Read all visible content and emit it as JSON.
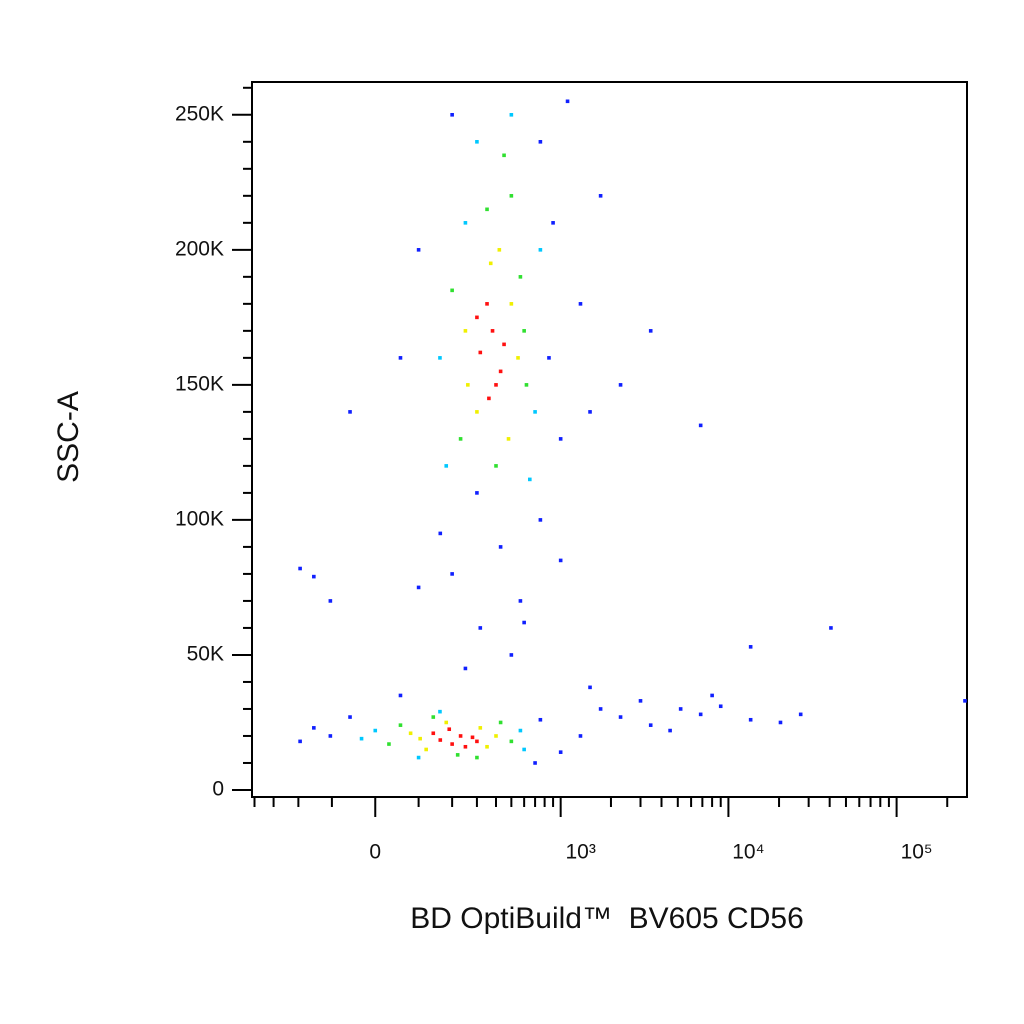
{
  "chart_data": {
    "type": "scatter",
    "x_label": "BD OptiBuild™  BV605 CD56",
    "y_label": "SSC-A",
    "x_scale": "biexponential",
    "xlim": [
      -415,
      262144
    ],
    "ylim": [
      -2600,
      262144
    ],
    "xticks": [
      0,
      {
        "value": 1000,
        "label": "10³"
      },
      {
        "value": 10000,
        "label": "10⁴"
      },
      {
        "value": 100000,
        "label": "10⁵"
      }
    ],
    "xminorticks": [
      -400,
      -300,
      -200,
      -100,
      100,
      200,
      300,
      400,
      500,
      600,
      700,
      800,
      900,
      2000,
      3000,
      4000,
      5000,
      6000,
      7000,
      8000,
      9000,
      20000,
      30000,
      40000,
      50000,
      60000,
      70000,
      80000,
      90000,
      200000
    ],
    "yticks": [
      0,
      {
        "value": 50000,
        "label": "50K"
      },
      {
        "value": 100000,
        "label": "100K"
      },
      {
        "value": 150000,
        "label": "150K"
      },
      {
        "value": 200000,
        "label": "200K"
      },
      {
        "value": 250000,
        "label": "250K"
      }
    ],
    "yminorticks": [
      10000,
      20000,
      30000,
      40000,
      60000,
      70000,
      80000,
      90000,
      110000,
      120000,
      130000,
      140000,
      160000,
      170000,
      180000,
      190000,
      210000,
      220000,
      230000,
      240000,
      260000
    ],
    "series": [
      {
        "color": "#1020ff",
        "x": [
          -104,
          -194,
          -56,
          754,
          1000,
          1315,
          700,
          56,
          -150,
          1735,
          2282,
          3450,
          5200,
          6840,
          9000,
          13560,
          20400,
          26900,
          3000,
          4500,
          8000,
          1500,
          316,
          200,
          428,
          569,
          100,
          754,
          500,
          300,
          161,
          1000,
          -104,
          600,
          250,
          1000,
          1315,
          56,
          -56,
          754,
          200,
          900,
          1735,
          1100,
          100,
          850,
          1500,
          2282,
          3450,
          6840,
          40700,
          255000,
          -194,
          -150,
          13560
        ],
        "values": [
          20000,
          18000,
          27000,
          26000,
          14000,
          20000,
          10000,
          35000,
          23000,
          30000,
          27000,
          24000,
          30000,
          28000,
          31000,
          26000,
          25000,
          28000,
          33000,
          22000,
          35000,
          38000,
          60000,
          80000,
          90000,
          70000,
          75000,
          100000,
          50000,
          110000,
          95000,
          85000,
          70000,
          62000,
          45000,
          130000,
          180000,
          160000,
          140000,
          240000,
          250000,
          210000,
          220000,
          255000,
          200000,
          160000,
          140000,
          150000,
          170000,
          135000,
          60000,
          33000,
          82000,
          79000,
          53000
        ]
      },
      {
        "color": "#00c8ff",
        "x": [
          0,
          -30,
          569,
          160,
          600,
          100,
          700,
          160,
          754,
          300,
          500,
          180,
          650,
          250
        ],
        "values": [
          22000,
          19000,
          22000,
          29000,
          15000,
          12000,
          140000,
          160000,
          200000,
          240000,
          250000,
          120000,
          115000,
          210000
        ]
      },
      {
        "color": "#30e030",
        "x": [
          56,
          30,
          428,
          500,
          220,
          140,
          300,
          569,
          231,
          500,
          350,
          620,
          200,
          400,
          450,
          600
        ],
        "values": [
          24000,
          17000,
          25000,
          18000,
          13000,
          27000,
          12000,
          190000,
          130000,
          220000,
          215000,
          150000,
          185000,
          120000,
          235000,
          170000
        ]
      },
      {
        "color": "#f0f000",
        "x": [
          104,
          316,
          120,
          350,
          180,
          80,
          400,
          260,
          500,
          420,
          300,
          480,
          370,
          250,
          550
        ],
        "values": [
          19000,
          23000,
          15000,
          16000,
          25000,
          21000,
          20000,
          150000,
          180000,
          200000,
          140000,
          130000,
          195000,
          170000,
          160000
        ]
      },
      {
        "color": "#ff1010",
        "x": [
          161,
          231,
          200,
          280,
          140,
          250,
          190,
          300,
          316,
          380,
          428,
          350,
          400,
          300,
          450,
          360
        ],
        "values": [
          18490,
          20000,
          17000,
          19500,
          21000,
          16000,
          22500,
          18000,
          162000,
          170000,
          155000,
          180000,
          150000,
          175000,
          165000,
          145000
        ]
      }
    ]
  }
}
